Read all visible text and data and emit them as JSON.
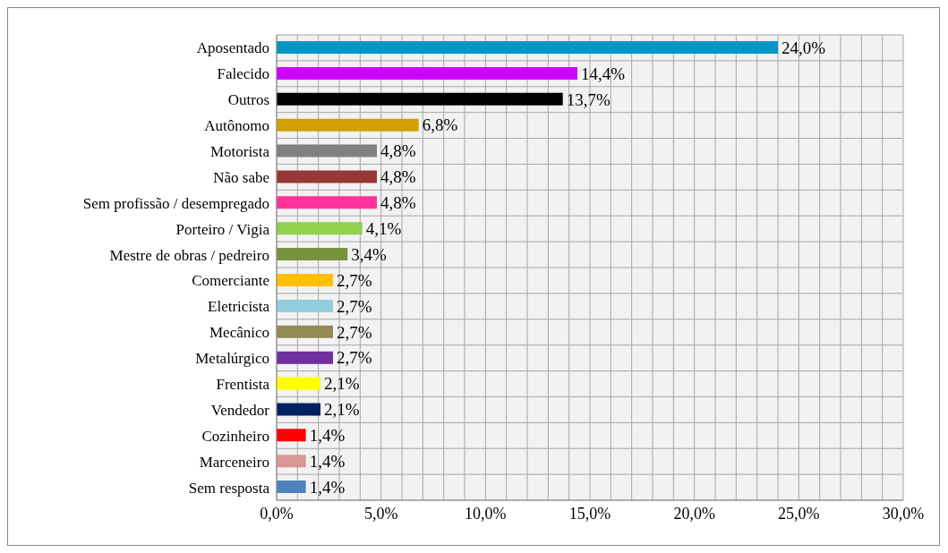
{
  "chart_data": {
    "type": "bar",
    "orientation": "horizontal",
    "categories": [
      "Aposentado",
      "Falecido",
      "Outros",
      "Autônomo",
      "Motorista",
      "Não sabe",
      "Sem profissão / desempregado",
      "Porteiro / Vigia",
      "Mestre de obras / pedreiro",
      "Comerciante",
      "Eletricista",
      "Mecânico",
      "Metalúrgico",
      "Frentista",
      "Vendedor",
      "Cozinheiro",
      "Marceneiro",
      "Sem resposta"
    ],
    "values": [
      24.0,
      14.4,
      13.7,
      6.8,
      4.8,
      4.8,
      4.8,
      4.1,
      3.4,
      2.7,
      2.7,
      2.7,
      2.7,
      2.1,
      2.1,
      1.4,
      1.4,
      1.4
    ],
    "value_labels": [
      "24,0%",
      "14,4%",
      "13,7%",
      "6,8%",
      "4,8%",
      "4,8%",
      "4,8%",
      "4,1%",
      "3,4%",
      "2,7%",
      "2,7%",
      "2,7%",
      "2,7%",
      "2,1%",
      "2,1%",
      "1,4%",
      "1,4%",
      "1,4%"
    ],
    "colors": [
      "#0596c9",
      "#cc00ff",
      "#000000",
      "#d49f00",
      "#808080",
      "#953735",
      "#ff3399",
      "#92d050",
      "#77933c",
      "#ffc000",
      "#92cddc",
      "#948a54",
      "#7030a0",
      "#ffff00",
      "#002060",
      "#ff0000",
      "#d99694",
      "#4f81bd"
    ],
    "xlim": [
      0,
      30
    ],
    "xticks": [
      {
        "value": 0,
        "label": "0,0%"
      },
      {
        "value": 1,
        "label": null
      },
      {
        "value": 2,
        "label": null
      },
      {
        "value": 3,
        "label": null
      },
      {
        "value": 4,
        "label": null
      },
      {
        "value": 5,
        "label": "5,0%"
      },
      {
        "value": 6,
        "label": null
      },
      {
        "value": 7,
        "label": null
      },
      {
        "value": 8,
        "label": null
      },
      {
        "value": 9,
        "label": null
      },
      {
        "value": 10,
        "label": "10,0%"
      },
      {
        "value": 11,
        "label": null
      },
      {
        "value": 12,
        "label": null
      },
      {
        "value": 13,
        "label": null
      },
      {
        "value": 14,
        "label": null
      },
      {
        "value": 15,
        "label": "15,0%"
      },
      {
        "value": 16,
        "label": null
      },
      {
        "value": 17,
        "label": null
      },
      {
        "value": 18,
        "label": null
      },
      {
        "value": 19,
        "label": null
      },
      {
        "value": 20,
        "label": "20,0%"
      },
      {
        "value": 21,
        "label": null
      },
      {
        "value": 22,
        "label": null
      },
      {
        "value": 23,
        "label": null
      },
      {
        "value": 24,
        "label": null
      },
      {
        "value": 25,
        "label": "25,0%"
      },
      {
        "value": 26,
        "label": null
      },
      {
        "value": 27,
        "label": null
      },
      {
        "value": 28,
        "label": null
      },
      {
        "value": 29,
        "label": null
      },
      {
        "value": 30,
        "label": "30,0%"
      }
    ],
    "grid": true
  }
}
